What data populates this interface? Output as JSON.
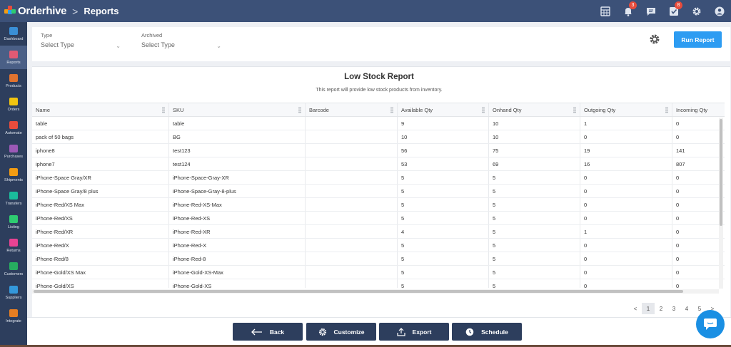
{
  "app": {
    "name": "Orderhive",
    "breadcrumb_sep": ">",
    "page": "Reports"
  },
  "topbar": {
    "notifications_count": "3",
    "tasks_count": "8"
  },
  "sidebar": {
    "items": [
      {
        "label": "Dashboard",
        "color": "#3a8fd6"
      },
      {
        "label": "Reports",
        "color": "#e05a74"
      },
      {
        "label": "Products",
        "color": "#e0732f"
      },
      {
        "label": "Orders",
        "color": "#f1c40f"
      },
      {
        "label": "Automate",
        "color": "#e74c3c"
      },
      {
        "label": "Purchases",
        "color": "#9b59b6"
      },
      {
        "label": "Shipments",
        "color": "#f39c12"
      },
      {
        "label": "Transfers",
        "color": "#1abc9c"
      },
      {
        "label": "Listing",
        "color": "#2ecc71"
      },
      {
        "label": "Returns",
        "color": "#e84393"
      },
      {
        "label": "Customers",
        "color": "#27ae60"
      },
      {
        "label": "Suppliers",
        "color": "#3498db"
      },
      {
        "label": "Integrate",
        "color": "#e67e22"
      }
    ]
  },
  "filters": {
    "type": {
      "label": "Type",
      "placeholder": "Select Type"
    },
    "archived": {
      "label": "Archived",
      "placeholder": "Select Type"
    },
    "run_label": "Run Report"
  },
  "report": {
    "title": "Low Stock Report",
    "subtitle": "This report will provide low stock products from inventory.",
    "columns": [
      "Name",
      "SKU",
      "Barcode",
      "Available Qty",
      "Onhand Qty",
      "Outgoing Qty",
      "Incoming Qty"
    ],
    "rows": [
      [
        "table",
        "table",
        "",
        "9",
        "10",
        "1",
        "0"
      ],
      [
        "pack of 50 bags",
        "BG",
        "",
        "10",
        "10",
        "0",
        "0"
      ],
      [
        "iphone8",
        "test123",
        "",
        "56",
        "75",
        "19",
        "141"
      ],
      [
        "iphone7",
        "test124",
        "",
        "53",
        "69",
        "16",
        "807"
      ],
      [
        "iPhone-Space Gray/XR",
        "iPhone-Space-Gray-XR",
        "",
        "5",
        "5",
        "0",
        "0"
      ],
      [
        "iPhone-Space Gray/8 plus",
        "iPhone-Space-Gray-8-plus",
        "",
        "5",
        "5",
        "0",
        "0"
      ],
      [
        "iPhone-Red/XS Max",
        "iPhone-Red-XS-Max",
        "",
        "5",
        "5",
        "0",
        "0"
      ],
      [
        "iPhone-Red/XS",
        "iPhone-Red-XS",
        "",
        "5",
        "5",
        "0",
        "0"
      ],
      [
        "iPhone-Red/XR",
        "iPhone-Red-XR",
        "",
        "4",
        "5",
        "1",
        "0"
      ],
      [
        "iPhone-Red/X",
        "iPhone-Red-X",
        "",
        "5",
        "5",
        "0",
        "0"
      ],
      [
        "iPhone-Red/8",
        "iPhone-Red-8",
        "",
        "5",
        "5",
        "0",
        "0"
      ],
      [
        "iPhone-Gold/XS Max",
        "iPhone-Gold-XS-Max",
        "",
        "5",
        "5",
        "0",
        "0"
      ],
      [
        "iPhone-Gold/XS",
        "iPhone-Gold-XS",
        "",
        "5",
        "5",
        "0",
        "0"
      ]
    ]
  },
  "pagination": {
    "prev": "<",
    "pages": [
      "1",
      "2",
      "3",
      "4",
      "5"
    ],
    "current": "1",
    "next": ">"
  },
  "actions": {
    "back": "Back",
    "customize": "Customize",
    "export": "Export",
    "schedule": "Schedule"
  },
  "colors": {
    "topbar": "#3c5178",
    "sidebar": "#2d3e5d",
    "accent": "#2d9cf2",
    "chat": "#1a8fe3"
  }
}
